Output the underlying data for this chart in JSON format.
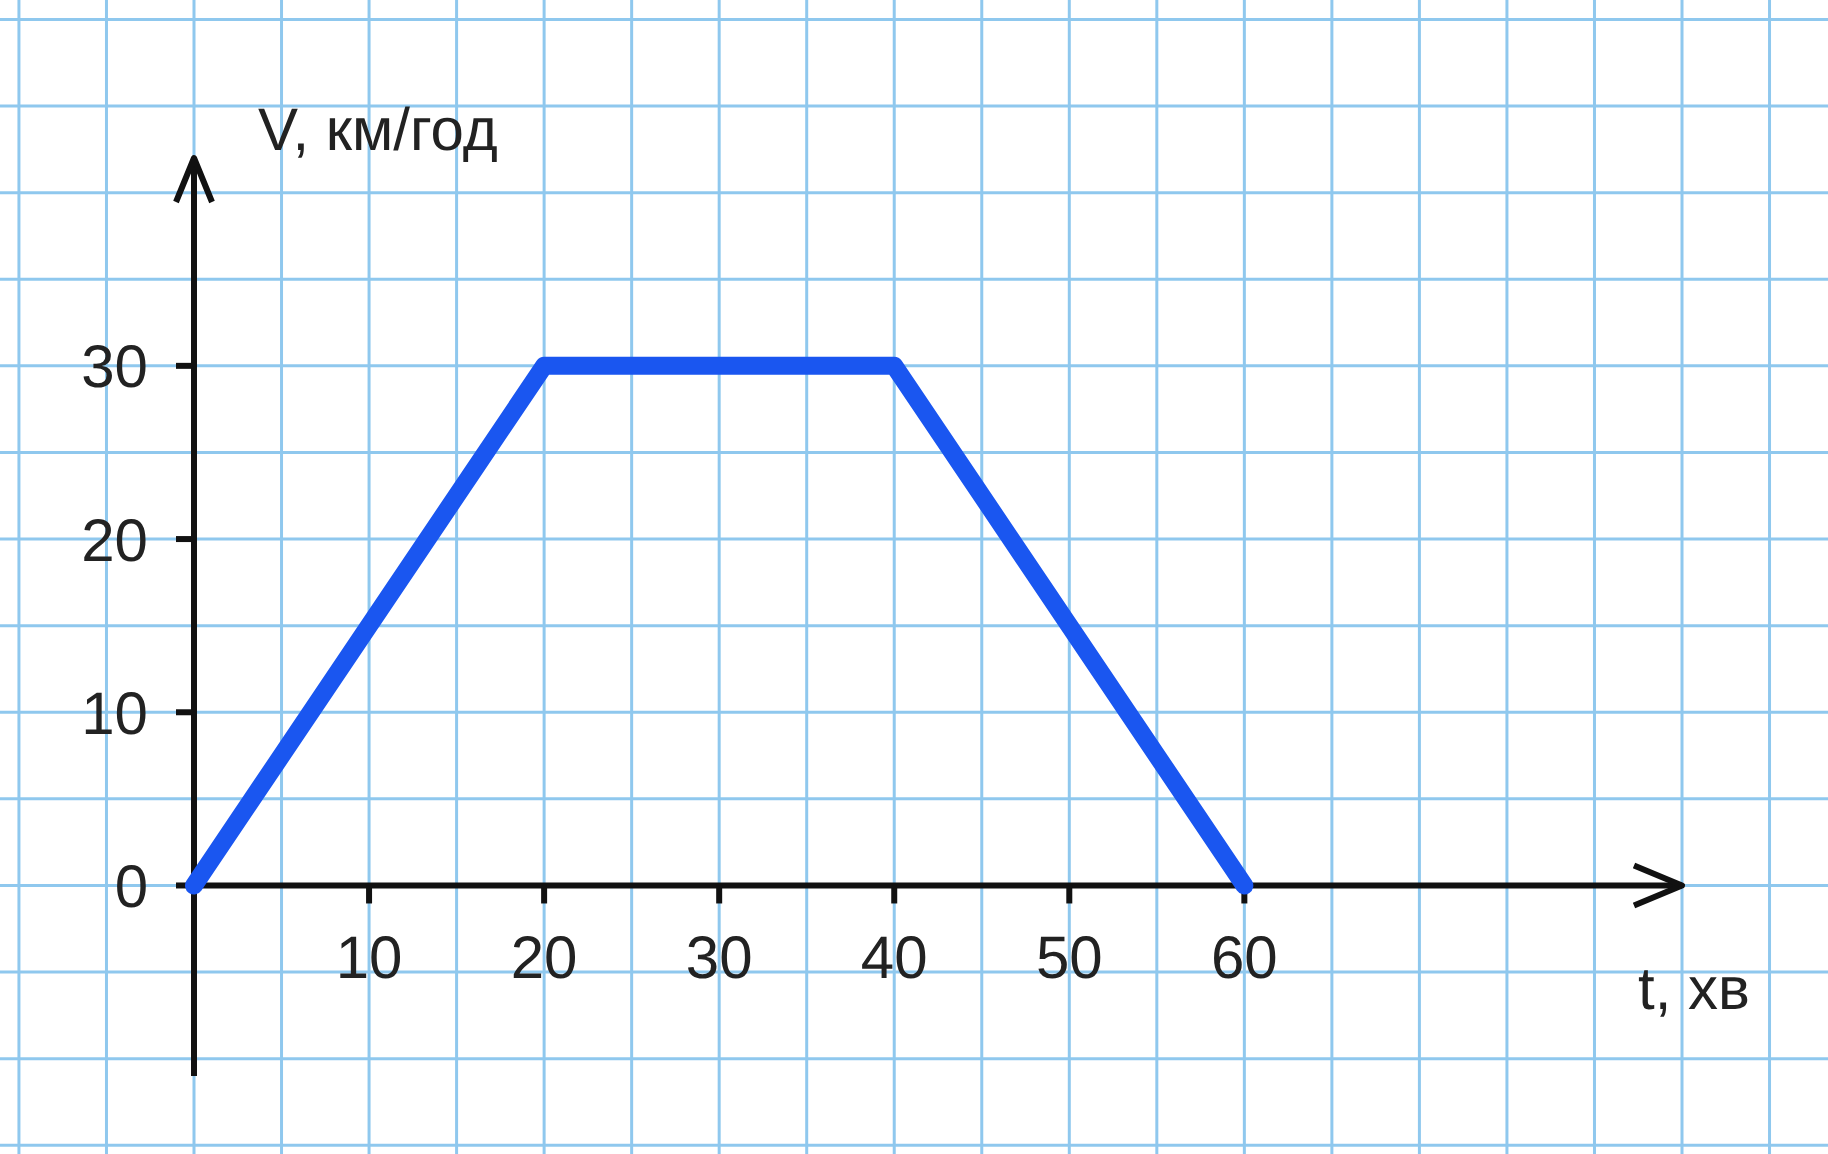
{
  "chart_data": {
    "type": "line",
    "xlabel": "t, хв",
    "ylabel": "V, км/год",
    "x": [
      0,
      20,
      40,
      60
    ],
    "series": [
      {
        "color": "#1a56f0",
        "values": [
          0,
          30,
          30,
          0
        ]
      }
    ],
    "xlim": [
      0,
      85
    ],
    "ylim": [
      -11,
      42
    ],
    "xticks": [
      10,
      20,
      30,
      40,
      50,
      60
    ],
    "yticks": [
      0,
      10,
      20,
      30
    ],
    "grid": true,
    "marker": "none",
    "line_style": "solid"
  }
}
